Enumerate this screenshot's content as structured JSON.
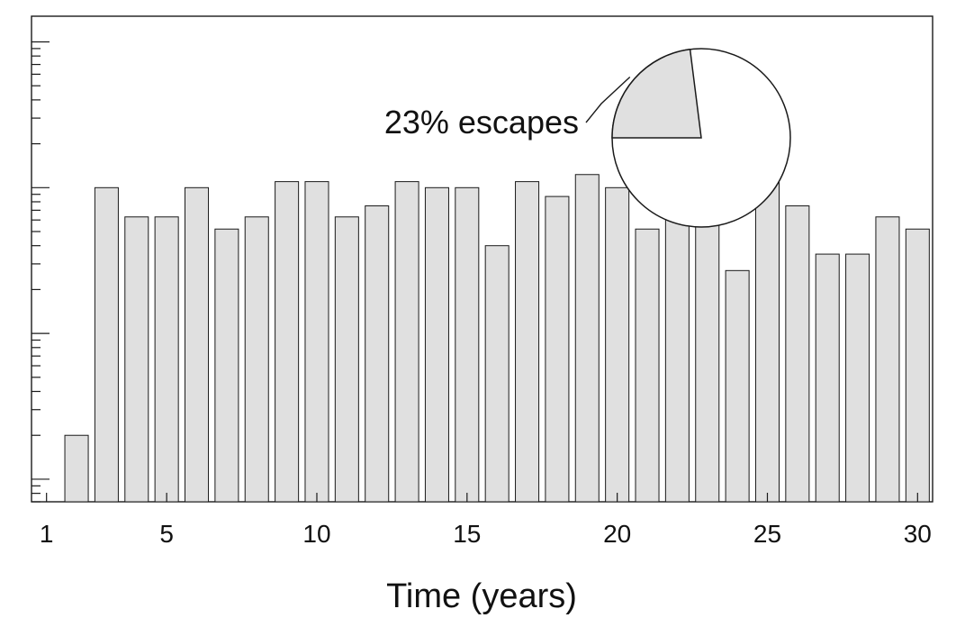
{
  "chart_data": {
    "type": "bar",
    "xlabel": "Time (years)",
    "ylabel": "",
    "x_tick_labels": [
      "1",
      "5",
      "10",
      "15",
      "20",
      "25",
      "30"
    ],
    "x_ticks": [
      1,
      5,
      10,
      15,
      20,
      25,
      30
    ],
    "xlim": [
      0.5,
      30.5
    ],
    "y_scale": "log",
    "ylim": [
      0.7,
      1500
    ],
    "categories": [
      1,
      2,
      3,
      4,
      5,
      6,
      7,
      8,
      9,
      10,
      11,
      12,
      13,
      14,
      15,
      16,
      17,
      18,
      19,
      20,
      21,
      22,
      23,
      24,
      25,
      26,
      27,
      28,
      29,
      30
    ],
    "values": [
      0,
      2,
      100,
      63,
      63,
      100,
      52,
      63,
      110,
      110,
      63,
      75,
      110,
      100,
      100,
      40,
      110,
      87,
      123,
      100,
      52,
      75,
      100,
      27,
      110,
      75,
      35,
      35,
      63,
      52
    ],
    "colors": {
      "bar_fill": "#e0e0e0",
      "bar_stroke": "#1a1a1a"
    },
    "inset": {
      "type": "pie",
      "slices": [
        {
          "label": "23% escapes",
          "value": 23,
          "color": "#e0e0e0"
        },
        {
          "label": "",
          "value": 77,
          "color": "#ffffff"
        }
      ]
    }
  }
}
